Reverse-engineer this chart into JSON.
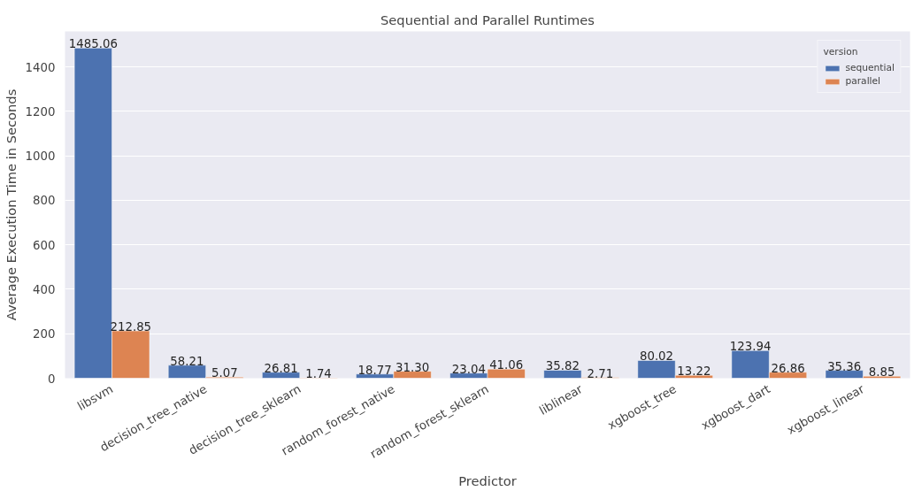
{
  "chart_data": {
    "type": "bar",
    "title": "Sequential and Parallel Runtimes",
    "xlabel": "Predictor",
    "ylabel": "Average Execution Time in Seconds",
    "categories": [
      "libsvm",
      "decision_tree_native",
      "decision_tree_sklearn",
      "random_forest_native",
      "random_forest_sklearn",
      "liblinear",
      "xgboost_tree",
      "xgboost_dart",
      "xgboost_linear"
    ],
    "series": [
      {
        "name": "sequential",
        "color": "#4c72b0",
        "values": [
          1485.06,
          58.21,
          26.81,
          18.77,
          23.04,
          35.82,
          80.02,
          123.94,
          35.36
        ],
        "value_labels": [
          "1485.06",
          "58.21",
          "26.81",
          "18.77",
          "23.04",
          "35.82",
          "80.02",
          "123.94",
          "35.36"
        ]
      },
      {
        "name": "parallel",
        "color": "#dd8452",
        "values": [
          212.85,
          5.07,
          1.74,
          31.3,
          41.06,
          2.71,
          13.22,
          26.86,
          8.85
        ],
        "value_labels": [
          "212.85",
          "5.07",
          "1.74",
          "31.30",
          "41.06",
          "2.71",
          "13.22",
          "26.86",
          "8.85"
        ]
      }
    ],
    "legend_title": "version",
    "legend": "top right",
    "grid": "y",
    "ylim": [
      0,
      1560
    ],
    "yticks": [
      0,
      200,
      400,
      600,
      800,
      1000,
      1200,
      1400
    ]
  }
}
